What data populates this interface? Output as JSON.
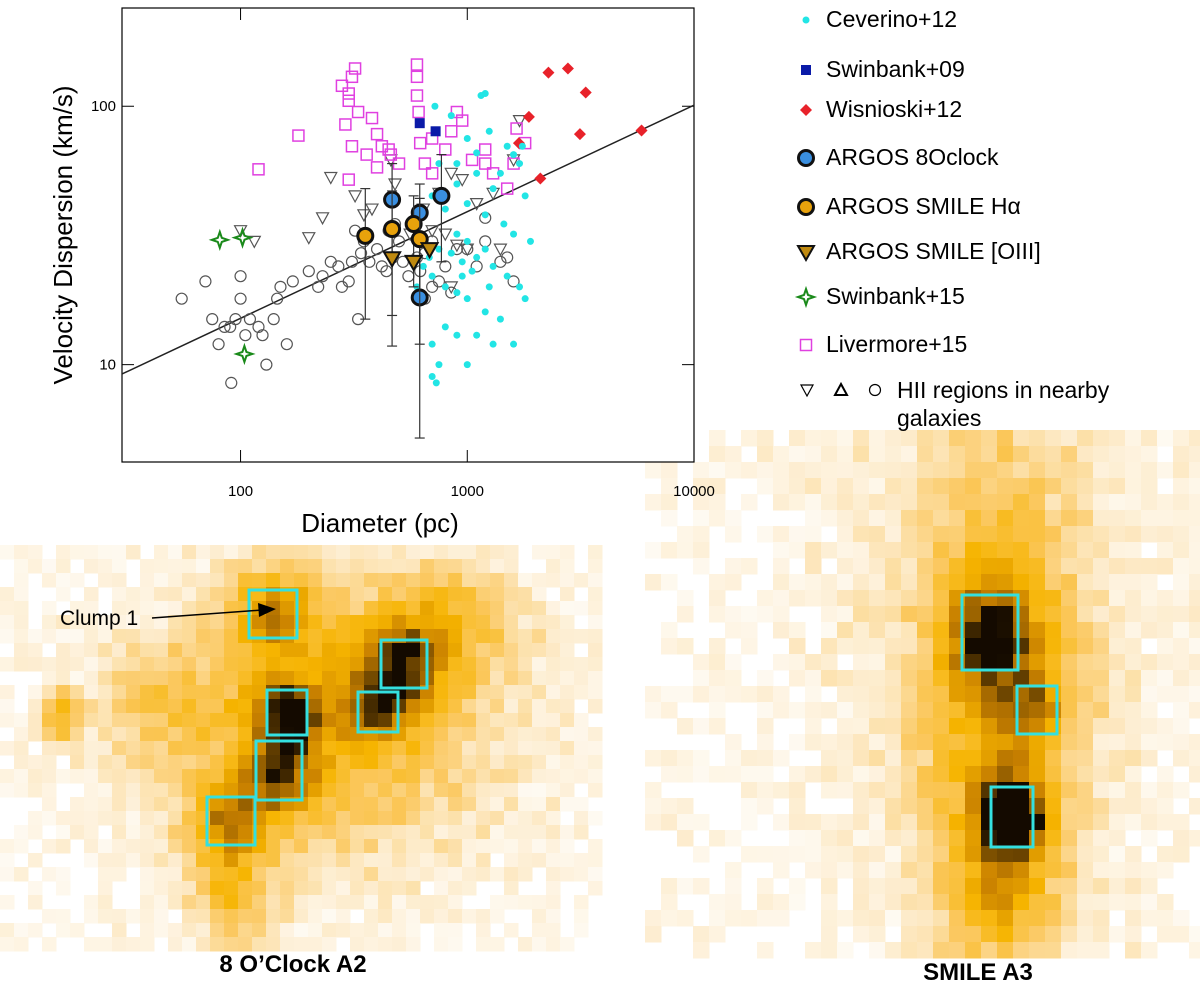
{
  "chart_data": {
    "type": "scatter",
    "xlabel": "Diameter (pc)",
    "ylabel": "Velocity Dispersion (km/s)",
    "log_x": true,
    "log_y": true,
    "xlim": [
      30,
      10000
    ],
    "ylim": [
      4.2,
      240
    ],
    "xticks": [
      100,
      1000,
      10000
    ],
    "yticks": [
      10,
      100
    ],
    "fit": {
      "color": "#222222",
      "x": [
        30,
        10000
      ],
      "values": [
        9.2,
        101
      ]
    },
    "series": [
      {
        "name": "Ceverino+12",
        "color": "#22e5e5",
        "marker": "dot",
        "x": [
          1150,
          1200,
          720,
          850,
          1000,
          1250,
          1500,
          1700,
          1100,
          900,
          1300,
          1800,
          700,
          800,
          1000,
          1200,
          1450,
          1600,
          1900,
          650,
          750,
          850,
          950,
          1100,
          1300,
          1500,
          1700,
          1800,
          700,
          800,
          900,
          1000,
          1200,
          1400,
          1100,
          900,
          800,
          700,
          750,
          700,
          730,
          1000,
          1300,
          1600,
          600,
          640,
          680,
          900,
          1000,
          1200,
          1400,
          1600,
          1100,
          900,
          750,
          1750,
          1050,
          950,
          1250
        ],
        "values": [
          110,
          112,
          100,
          92,
          75,
          80,
          70,
          60,
          55,
          50,
          48,
          45,
          45,
          40,
          42,
          38,
          35,
          32,
          30,
          30,
          28,
          27,
          25,
          26,
          24,
          22,
          20,
          18,
          22,
          20,
          19,
          18,
          16,
          15,
          13,
          13,
          14,
          12,
          10,
          9,
          8.5,
          10,
          12,
          12,
          20,
          24,
          26,
          32,
          30,
          28,
          55,
          65,
          66,
          60,
          60,
          70,
          23,
          22,
          20
        ]
      },
      {
        "name": "Swinbank+09",
        "color": "#0a1aa8",
        "marker": "square",
        "x": [
          617,
          725
        ],
        "values": [
          86,
          80
        ]
      },
      {
        "name": "Wisnioski+12",
        "color": "#e8222a",
        "marker": "diamond",
        "x": [
          2280,
          2780,
          3330,
          3140,
          5870,
          1870,
          1690,
          2100
        ],
        "values": [
          135,
          140,
          113,
          78,
          80.6,
          91,
          72,
          52.5
        ]
      },
      {
        "name": "ARGOS 8Oclock",
        "color": "#3a8fe0",
        "marker": "circle-edge",
        "x": [
          466,
          617,
          769,
          617
        ],
        "values": [
          43.5,
          38.7,
          45,
          18.2
        ],
        "err_low": [
          15.5,
          18,
          25,
          5.2
        ],
        "err_high": [
          60,
          50,
          65,
          32
        ]
      },
      {
        "name": "ARGOS SMILE Hα",
        "color": "#e8a20c",
        "marker": "circle-edge",
        "x": [
          355,
          466,
          580,
          617
        ],
        "values": [
          31.5,
          33.5,
          35,
          30.6
        ],
        "err_low": [
          15,
          11.8,
          20,
          12
        ],
        "err_high": [
          48,
          47,
          45,
          44
        ]
      },
      {
        "name": "ARGOS SMILE [OIII]",
        "color": "#c08a10",
        "marker": "triangle-edge",
        "x": [
          466,
          580,
          682
        ],
        "values": [
          25.8,
          25,
          28
        ]
      },
      {
        "name": "Swinbank+15",
        "color": "#1a8a1a",
        "marker": "star-open",
        "x": [
          81,
          102,
          104
        ],
        "values": [
          30.4,
          31,
          11
        ]
      },
      {
        "name": "Livermore+15",
        "color": "#e040e0",
        "marker": "square-open",
        "x": [
          120,
          180,
          280,
          300,
          310,
          320,
          300,
          330,
          290,
          310,
          300,
          380,
          400,
          420,
          450,
          400,
          360,
          460,
          600,
          600,
          600,
          610,
          620,
          650,
          700,
          800,
          850,
          900,
          950,
          1050,
          1200,
          1200,
          1300,
          1500,
          1600,
          1800,
          1650,
          500,
          700
        ],
        "values": [
          57,
          77,
          120,
          112,
          130,
          140,
          105,
          95,
          85,
          70,
          52,
          90,
          78,
          70,
          68,
          58,
          65,
          65,
          145,
          130,
          110,
          95,
          72,
          60,
          75,
          68,
          80,
          95,
          88,
          62,
          60,
          68,
          55,
          48,
          60,
          72,
          82,
          60,
          55
        ]
      },
      {
        "name": "HII regions in nearby galaxies",
        "color": "#555555",
        "legend_markers": [
          "triangle-open",
          "triangle-up-open",
          "circle-open"
        ],
        "x": [
          55,
          70,
          75,
          80,
          85,
          90,
          95,
          100,
          100,
          105,
          110,
          120,
          125,
          130,
          140,
          145,
          150,
          160,
          170,
          200,
          220,
          230,
          250,
          270,
          280,
          300,
          310,
          330,
          340,
          350,
          370,
          400,
          420,
          440,
          470,
          500,
          520,
          550,
          600,
          620,
          650,
          700,
          750,
          800,
          850,
          900,
          1000,
          1100,
          1200,
          1400,
          1500,
          1600,
          1200,
          320,
          450,
          700,
          650,
          480,
          91,
          100,
          115,
          250,
          200,
          230,
          320,
          350,
          380,
          460,
          480,
          560,
          600,
          640,
          700,
          750,
          850,
          950,
          1100,
          1300,
          1400,
          1700,
          1600,
          900,
          850,
          800,
          1000
        ],
        "values": [
          18,
          21,
          15,
          12,
          14,
          14,
          15,
          22,
          18,
          13,
          15,
          14,
          13,
          10,
          15,
          18,
          20,
          12,
          21,
          23,
          20,
          22,
          25,
          24,
          20,
          21,
          25,
          15,
          27,
          30,
          25,
          28,
          24,
          23,
          26,
          30,
          25,
          22,
          26,
          23,
          27,
          30,
          21,
          24,
          19,
          28,
          28,
          24,
          37,
          25,
          26,
          21,
          30,
          33,
          33,
          20,
          18,
          35,
          8.5,
          33,
          30,
          53,
          31,
          37,
          45,
          38,
          40,
          62,
          50,
          32,
          36,
          40,
          33,
          46,
          55,
          52,
          42,
          46,
          28,
          88,
          62,
          29,
          20,
          32,
          28
        ],
        "markers": [
          "circle-open",
          "circle-open",
          "circle-open",
          "circle-open",
          "circle-open",
          "circle-open",
          "circle-open",
          "circle-open",
          "circle-open",
          "circle-open",
          "circle-open",
          "circle-open",
          "circle-open",
          "circle-open",
          "circle-open",
          "circle-open",
          "circle-open",
          "circle-open",
          "circle-open",
          "circle-open",
          "circle-open",
          "circle-open",
          "circle-open",
          "circle-open",
          "circle-open",
          "circle-open",
          "circle-open",
          "circle-open",
          "circle-open",
          "circle-open",
          "circle-open",
          "circle-open",
          "circle-open",
          "circle-open",
          "circle-open",
          "circle-open",
          "circle-open",
          "circle-open",
          "circle-open",
          "circle-open",
          "circle-open",
          "circle-open",
          "circle-open",
          "circle-open",
          "circle-open",
          "circle-open",
          "circle-open",
          "circle-open",
          "circle-open",
          "circle-open",
          "circle-open",
          "circle-open",
          "circle-open",
          "circle-open",
          "circle-open",
          "circle-open",
          "circle-open",
          "circle-open",
          "circle-open",
          "triangle-open",
          "triangle-open",
          "triangle-open",
          "triangle-open",
          "triangle-open",
          "triangle-open",
          "triangle-open",
          "triangle-open",
          "triangle-open",
          "triangle-open",
          "triangle-open",
          "triangle-open",
          "triangle-open",
          "triangle-open",
          "triangle-open",
          "triangle-open",
          "triangle-open",
          "triangle-open",
          "triangle-open",
          "triangle-open",
          "triangle-open",
          "triangle-open",
          "triangle-open",
          "triangle-open",
          "triangle-open",
          "triangle-open"
        ]
      }
    ]
  },
  "panels": {
    "left": {
      "title": "8 O’Clock A2",
      "annotation": "Clump 1"
    },
    "right": {
      "title": "SMILE A3"
    }
  }
}
